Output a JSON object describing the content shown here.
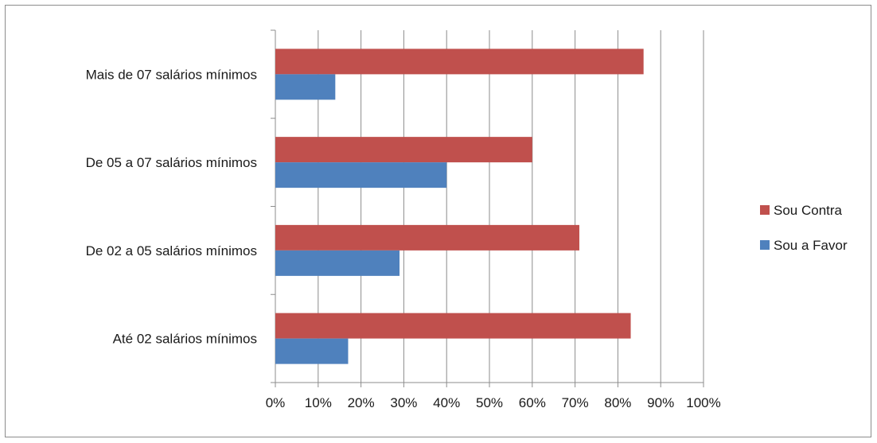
{
  "chart_data": {
    "type": "bar",
    "orientation": "horizontal",
    "title": "",
    "xlabel": "",
    "ylabel": "",
    "categories": [
      "Até 02 salários mínimos",
      "De 02 a 05 salários mínimos",
      "De 05 a 07 salários mínimos",
      "Mais de 07 salários mínimos"
    ],
    "series": [
      {
        "name": "Sou a Favor",
        "color": "#4f81bd",
        "values": [
          17,
          29,
          40,
          14
        ]
      },
      {
        "name": "Sou Contra",
        "color": "#c0504d",
        "values": [
          83,
          71,
          60,
          86
        ]
      }
    ],
    "xlim": [
      0,
      100
    ],
    "x_ticks": [
      "0%",
      "10%",
      "20%",
      "30%",
      "40%",
      "50%",
      "60%",
      "70%",
      "80%",
      "90%",
      "100%"
    ],
    "grid": "vertical",
    "legend_position": "right"
  }
}
